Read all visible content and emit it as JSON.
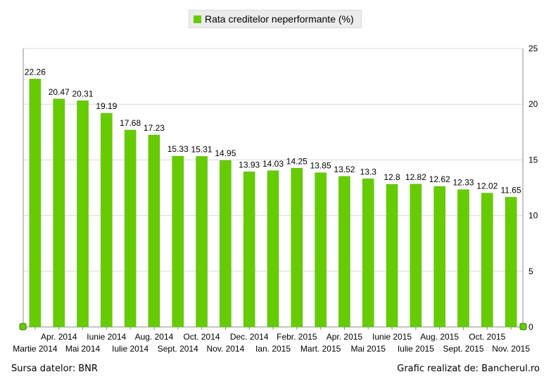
{
  "colors": {
    "bar": "#66cc00",
    "bar_stroke": "#56b000",
    "grid": "#d9d9d9",
    "axis": "#8c8c8c",
    "handle": "#66cc00"
  },
  "legend": {
    "label": "Rata creditelor neperformante (%)"
  },
  "footer": {
    "source": "Sursa datelor: BNR",
    "credit": "Grafic realizat de: Bancherul.ro"
  },
  "chart_data": {
    "type": "bar",
    "title": "",
    "xlabel": "",
    "ylabel": "",
    "ylim": [
      0,
      25
    ],
    "yticks": [
      0,
      5,
      10,
      15,
      20,
      25
    ],
    "y_axis_side": "right",
    "grid": true,
    "legend_position": "top-center",
    "categories": [
      "Martie 2014",
      "Apr. 2014",
      "Mai 2014",
      "Iunie 2014",
      "Iulie 2014",
      "Aug. 2014",
      "Sept. 2014",
      "Oct. 2014",
      "Nov. 2014",
      "Dec. 2014",
      "Ian. 2015",
      "Febr. 2015",
      "Mart. 2015",
      "Apr. 2015",
      "Mai 2015",
      "Iunie 2015",
      "Iulie 2015",
      "Aug. 2015",
      "Sept. 2015",
      "Oct. 2015",
      "Nov. 2015"
    ],
    "series": [
      {
        "name": "Rata creditelor neperformante (%)",
        "values": [
          22.26,
          20.47,
          20.31,
          19.19,
          17.68,
          17.23,
          15.33,
          15.31,
          14.95,
          13.93,
          14.03,
          14.25,
          13.85,
          13.52,
          13.3,
          12.8,
          12.82,
          12.62,
          12.33,
          12.02,
          11.65
        ],
        "labels": [
          "22.26",
          "20.47",
          "20.31",
          "19.19",
          "17.68",
          "17.23",
          "15.33",
          "15.31",
          "14.95",
          "13.93",
          "14.03",
          "14.25",
          "13.85",
          "13.52",
          "13.3",
          "12.8",
          "12.82",
          "12.62",
          "12.33",
          "12.02",
          "11.65"
        ]
      }
    ]
  }
}
